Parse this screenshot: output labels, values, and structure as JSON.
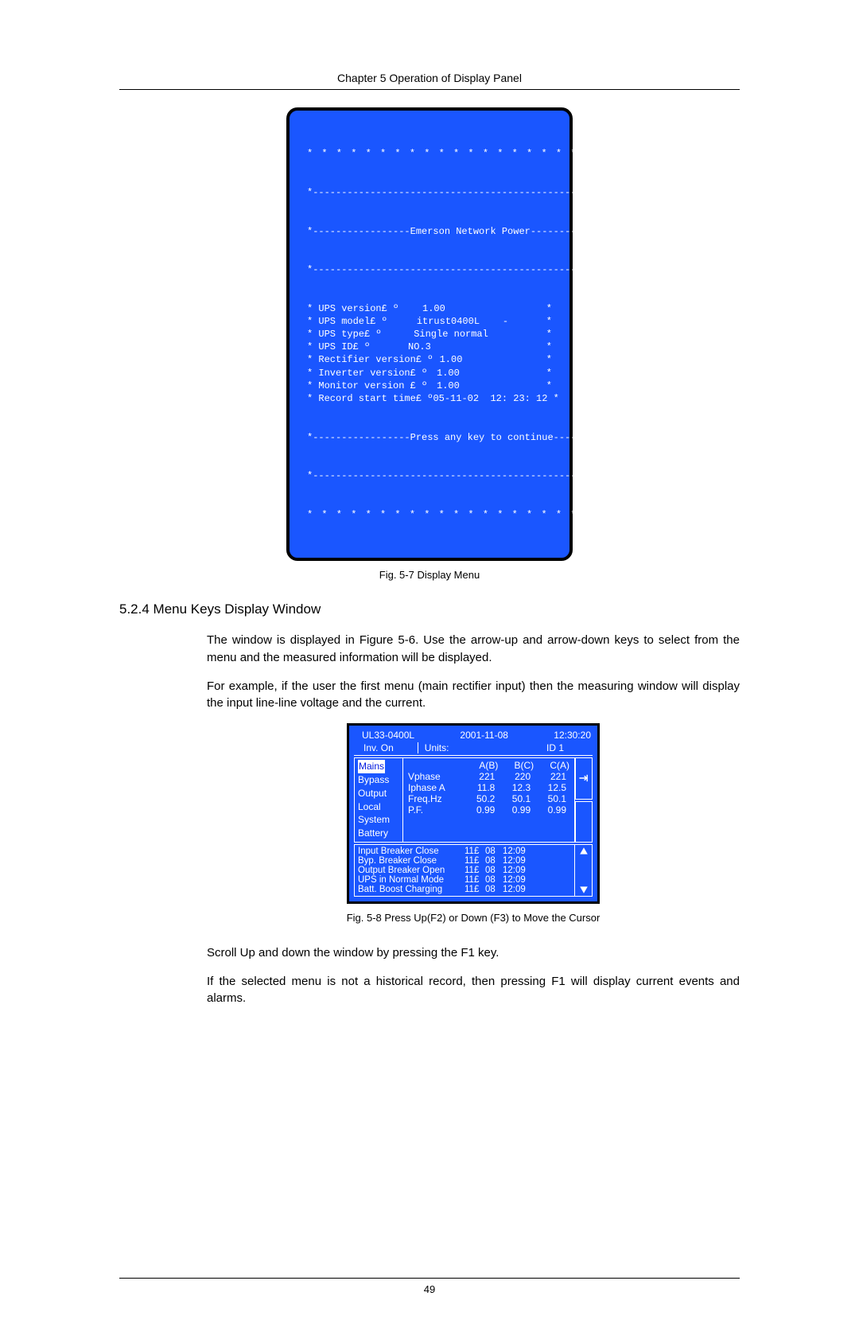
{
  "chapter_header": "Chapter 5  Operation of Display Panel",
  "screen1": {
    "header_banner": "Emerson Network Power",
    "rows": [
      {
        "label": "* UPS version£ º",
        "value": "1.00"
      },
      {
        "label": "* UPS model£ º",
        "value": "itrust0400L    -"
      },
      {
        "label": "* UPS type£ º",
        "value": "Single normal"
      },
      {
        "label": "* UPS ID£ º",
        "value": "NO.3"
      },
      {
        "label": "* Rectifier version£ º",
        "value": "1.00"
      },
      {
        "label": "* Inverter version£ º",
        "value": "1.00"
      },
      {
        "label": "* Monitor version £ º",
        "value": "1.00"
      },
      {
        "label": "* Record start time£ º",
        "value": "05-11-02  12: 23: 12 *"
      }
    ],
    "footer_banner": "Press any key to continue",
    "bg_color": "#1a56ff",
    "text_color": "#ffffff"
  },
  "fig1_caption": "Fig. 5-7  Display Menu",
  "section_heading": "5.2.4  Menu Keys Display Window",
  "para1": "The window is displayed in Figure 5-6. Use the arrow-up and arrow-down keys to select from the menu and the measured information will be displayed.",
  "para2": "For example, if the user the first menu (main rectifier input) then the measuring window will display the input line-line voltage and the current.",
  "screen2": {
    "topbar": {
      "model": "UL33-0400L",
      "date": "2001-11-08",
      "time": "12:30:20"
    },
    "topbar2": {
      "status": "Inv. On",
      "units_label": "Units:",
      "id_label": "ID 1"
    },
    "menu_items": [
      "Mains",
      "Bypass",
      "Output",
      "Local",
      "System",
      "Battery"
    ],
    "selected_index": 0,
    "col_headers": [
      "",
      "A(B)",
      "B(C)",
      "C(A)"
    ],
    "data_rows": [
      [
        "Vphase",
        "221",
        "220",
        "221"
      ],
      [
        "Iphase A",
        "11.8",
        "12.3",
        "12.5"
      ],
      [
        "Freq.Hz",
        "50.2",
        "50.1",
        "50.1"
      ],
      [
        "P.F.",
        "0.99",
        "0.99",
        "0.99"
      ]
    ],
    "events": [
      {
        "name": "Input Breaker Close",
        "d1": "11£",
        "d2": "08",
        "t": "12:09"
      },
      {
        "name": "Byp. Breaker Close",
        "d1": "11£",
        "d2": "08",
        "t": "12:09"
      },
      {
        "name": "Output Breaker Open",
        "d1": "11£",
        "d2": "08",
        "t": "12:09"
      },
      {
        "name": "UPS in Normal Mode",
        "d1": "11£",
        "d2": "08",
        "t": "12:09"
      },
      {
        "name": "Batt. Boost Charging",
        "d1": "11£",
        "d2": "08",
        "t": "12:09"
      }
    ],
    "bg_color": "#1a56ff",
    "text_color": "#ffffff",
    "selected_bg": "#ffffff",
    "selected_fg": "#0019e0"
  },
  "fig2_caption": "Fig. 5-8  Press Up(F2) or Down (F3) to Move the Cursor",
  "para3": "Scroll Up and down the window by pressing the F1 key.",
  "para4": "If  the selected menu is not a historical record, then pressing F1 will display current events and alarms.",
  "page_number": "49"
}
